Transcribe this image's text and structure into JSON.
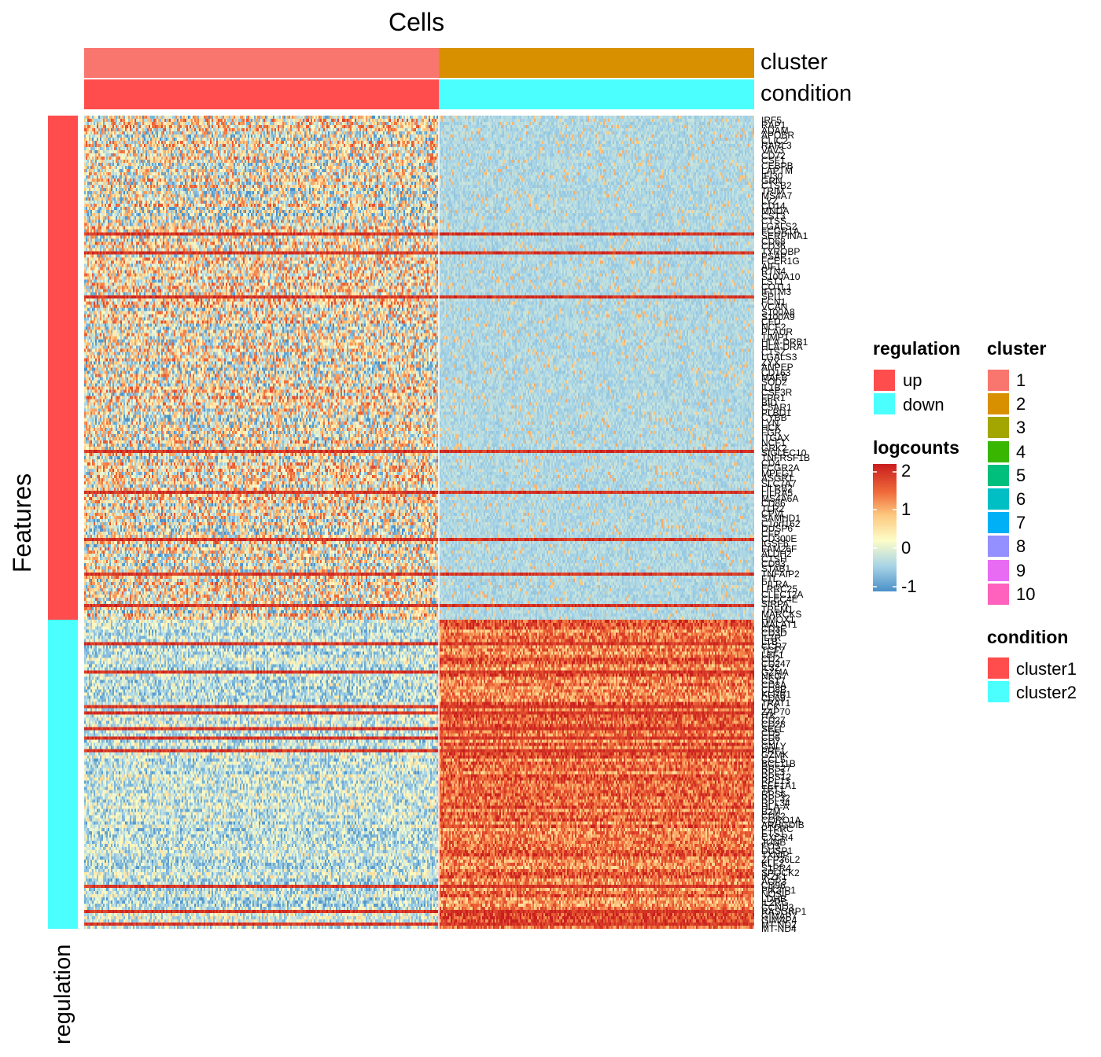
{
  "chart_data": {
    "type": "heatmap",
    "title": "Cells",
    "ylabel": "Features",
    "row_annotation_label": "regulation",
    "column_annotations": [
      {
        "name": "cluster",
        "segments": [
          {
            "value": "1",
            "fraction": 0.529
          },
          {
            "value": "2",
            "fraction": 0.471
          }
        ]
      },
      {
        "name": "condition",
        "segments": [
          {
            "value": "cluster1",
            "fraction": 0.529
          },
          {
            "value": "cluster2",
            "fraction": 0.471
          }
        ]
      }
    ],
    "row_annotation": {
      "name": "regulation",
      "segments": [
        {
          "value": "up",
          "fraction": 0.62
        },
        {
          "value": "down",
          "fraction": 0.38
        }
      ]
    },
    "gene_labels": [
      "IRF5",
      "RAP1",
      "ADAM",
      "APOBR",
      "CLIC2",
      "RARL3",
      "VAV3",
      "CD72",
      "CSF1",
      "CEBPB",
      "LAPTM",
      "IFI30",
      "GRN",
      "CTSB2",
      "TRIM",
      "MS4A7",
      "LYZ",
      "CD14",
      "MNDA",
      "CST3",
      "CTSS",
      "LGALS2",
      "FCGR1A",
      "SERPINA1",
      "CD68",
      "CD36",
      "TYROBP",
      "PSAP",
      "FCER1G",
      "AIF1",
      "RTN4",
      "S100A10",
      "LST1",
      "COTL1",
      "IFITM3",
      "SPI1",
      "FCN1",
      "VCAN",
      "S100A8",
      "S100A9",
      "CFD",
      "NCF2",
      "PLAUR",
      "TIMP1",
      "HLA-DRB1",
      "HLA-DRA",
      "CTSZ",
      "LGALS3",
      "ZYX",
      "ANPEP",
      "CD163",
      "MAFB",
      "SOD2",
      "IL1B",
      "CSF3R",
      "FPR1",
      "BID",
      "C5AR1",
      "PLBD1",
      "CYBB",
      "LYN",
      "HCK",
      "FGR",
      "ITGAX",
      "NCF1",
      "GRK2",
      "SIGLEC10",
      "TNFRSF1B",
      "CD4",
      "FCGR2A",
      "MPEG1",
      "ASGR1",
      "SLC7A7",
      "LILRB2",
      "LILRA5",
      "MS4A6A",
      "CD86",
      "TLR2",
      "CPVL",
      "SAMHD1",
      "C1orf162",
      "DUSP6",
      "CFP",
      "CD300E",
      "IGSF6",
      "FAM26F",
      "ALDH2",
      "CTSH",
      "CD93",
      "STAB1",
      "TNFAIP2",
      "FTL",
      "PILRA",
      "LRRC25",
      "CLEC12A",
      "CLEC4E",
      "SIRPA",
      "TREM1",
      "MARCKS",
      "HMOX1"
    ],
    "gene_labels_down": [
      "MALAT1",
      "CD3E",
      "CD3D",
      "IL7R",
      "LTB",
      "CCR7",
      "TCF7",
      "LEF1",
      "CD2",
      "CD247",
      "IL32",
      "GZMA",
      "NKG7",
      "CST7",
      "CD8A",
      "CD8B",
      "KLRB1",
      "CD69",
      "TRAT1",
      "LCK",
      "ZAP70",
      "ITK",
      "CD27",
      "CD28",
      "SELL",
      "CD5",
      "CD6",
      "CD7",
      "GNLY",
      "PRF1",
      "GZMK",
      "CCL5",
      "BCL11B",
      "RPS27",
      "RPL3",
      "RPS12",
      "RPL13",
      "EEF1A1",
      "TPT1",
      "RPS6",
      "RPL32",
      "RPL34",
      "HLA-A",
      "B2M",
      "CD52",
      "CORO1A",
      "ARHGDIB",
      "PTPRC",
      "ETS1",
      "CXCR4",
      "JUNB",
      "FOS",
      "DUSP1",
      "TXNIP",
      "ZFP36L2",
      "KLF2",
      "S1PR4",
      "SPOCK2",
      "IKZF1",
      "AQP3",
      "CD96",
      "PIK3IP1",
      "NOSIP",
      "LDHB",
      "IL2RG",
      "CCND3",
      "RASGRP1",
      "GIMAP7",
      "GIMAP4",
      "MT-ND2",
      "MT-ND4"
    ],
    "color_scale": {
      "name": "logcounts",
      "ticks": [
        2,
        1,
        0,
        -1
      ],
      "range": [
        -1.3,
        2.2
      ],
      "colors": [
        "#4a90c8",
        "#a8d4e6",
        "#fdfdc8",
        "#fdc77e",
        "#ef6a3a",
        "#c81d1d"
      ]
    },
    "legends": {
      "regulation": {
        "title": "regulation",
        "items": [
          {
            "label": "up",
            "color": "#ff4c4c"
          },
          {
            "label": "down",
            "color": "#4bffff"
          }
        ]
      },
      "cluster": {
        "title": "cluster",
        "items": [
          {
            "label": "1",
            "color": "#f8766d"
          },
          {
            "label": "2",
            "color": "#d89000"
          },
          {
            "label": "3",
            "color": "#a3a500"
          },
          {
            "label": "4",
            "color": "#39b600"
          },
          {
            "label": "5",
            "color": "#00bf7d"
          },
          {
            "label": "6",
            "color": "#00bfc4"
          },
          {
            "label": "7",
            "color": "#00b0f6"
          },
          {
            "label": "8",
            "color": "#9590ff"
          },
          {
            "label": "9",
            "color": "#e76bf3"
          },
          {
            "label": "10",
            "color": "#ff62bc"
          }
        ]
      },
      "condition": {
        "title": "condition",
        "items": [
          {
            "label": "cluster1",
            "color": "#ff4c4c"
          },
          {
            "label": "cluster2",
            "color": "#4bffff"
          }
        ]
      }
    },
    "logcounts_title": "logcounts"
  }
}
